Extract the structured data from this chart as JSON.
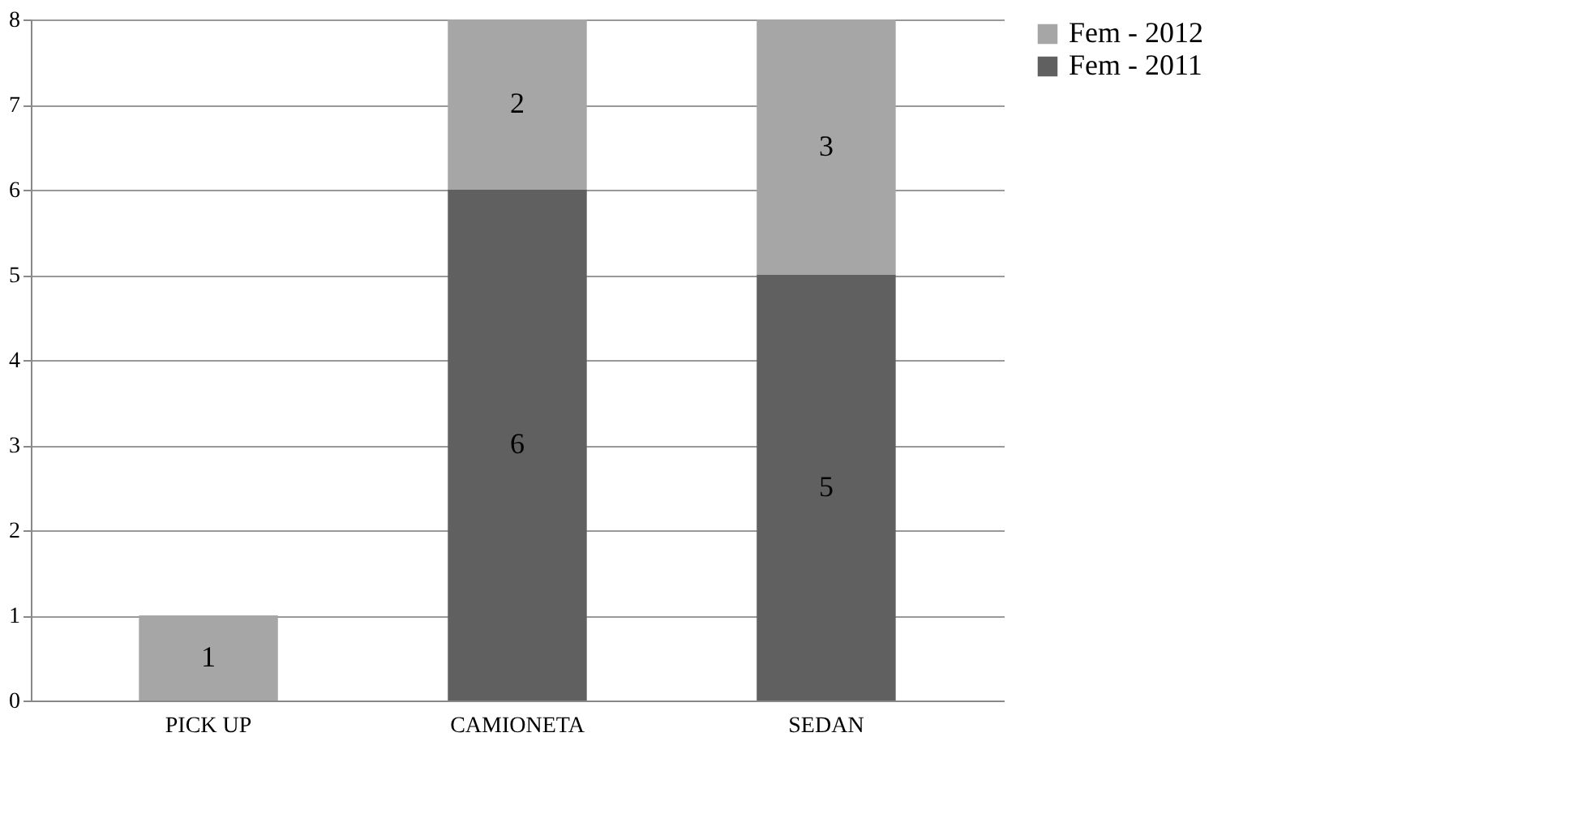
{
  "chart_data": {
    "type": "bar",
    "stacked": true,
    "categories": [
      "PICK UP",
      "CAMIONETA",
      "SEDAN"
    ],
    "series": [
      {
        "name": "Fem - 2011",
        "color": "#606060",
        "values": [
          null,
          6,
          5
        ]
      },
      {
        "name": "Fem - 2012",
        "color": "#a6a6a6",
        "values": [
          1,
          2,
          3
        ]
      }
    ],
    "ylim": [
      0,
      8
    ],
    "yticks": [
      0,
      1,
      2,
      3,
      4,
      5,
      6,
      7,
      8
    ],
    "grid": "y",
    "legend": "right",
    "data_labels": true
  }
}
